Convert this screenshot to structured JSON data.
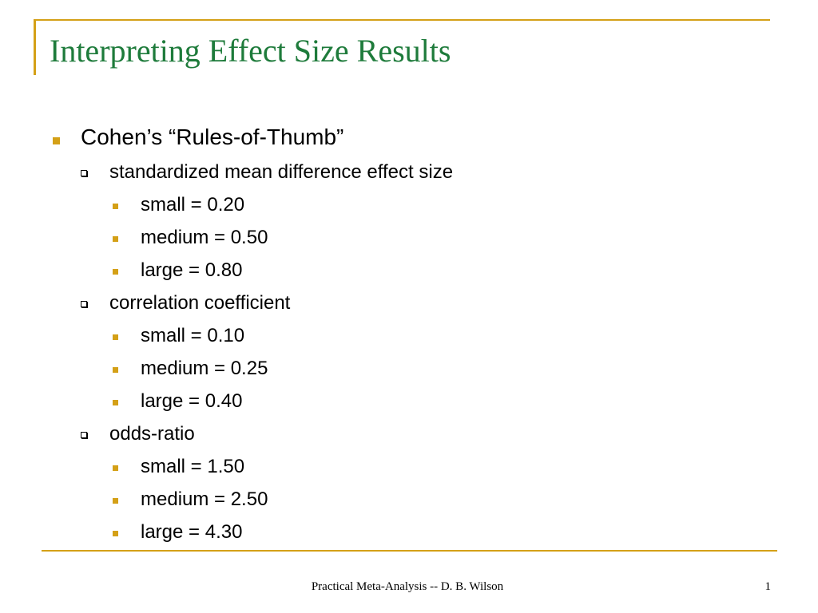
{
  "slide": {
    "title": "Interpreting Effect Size Results",
    "bullets": {
      "main": "Cohen’s “Rules-of-Thumb”",
      "smd": {
        "label": "standardized mean difference effect size",
        "small": "small = 0.20",
        "medium": "medium = 0.50",
        "large": "large = 0.80"
      },
      "corr": {
        "label": "correlation coefficient",
        "small": "small = 0.10",
        "medium": "medium = 0.25",
        "large": "large = 0.40"
      },
      "odds": {
        "label": "odds-ratio",
        "small": "small = 1.50",
        "medium": "medium = 2.50",
        "large": "large = 4.30"
      }
    },
    "footer": "Practical Meta-Analysis -- D. B. Wilson",
    "page_number": "1"
  },
  "colors": {
    "accent": "#d4a017",
    "title": "#1e7b3b",
    "text": "#000000",
    "background": "#ffffff"
  }
}
